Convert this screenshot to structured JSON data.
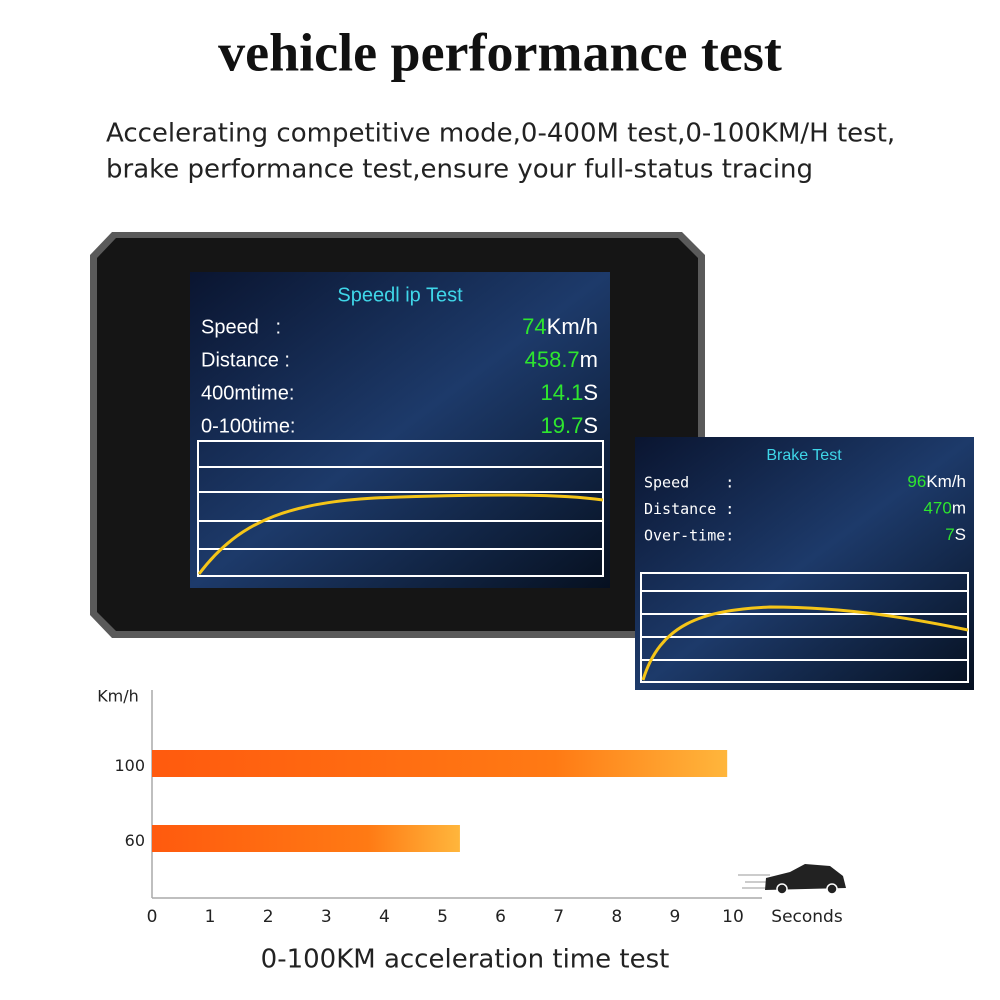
{
  "header": {
    "title": "vehicle performance test",
    "subtitle": [
      "Accelerating competitive mode,0-400M test,0-100KM/H test,",
      "brake performance test,ensure your full-status tracing"
    ]
  },
  "speed_screen": {
    "title": "Speedl ip Test",
    "rows": [
      {
        "label": "Speed   :",
        "value": 74,
        "unit": "Km/h"
      },
      {
        "label": "Distance :",
        "value": 458.7,
        "unit": "m"
      },
      {
        "label": "400mtime:",
        "value": 14.1,
        "unit": "S"
      },
      {
        "label": "0-100time:",
        "value": 19.7,
        "unit": "S"
      }
    ]
  },
  "brake_screen": {
    "title": "Brake Test",
    "rows": [
      {
        "label": "Speed    :",
        "value": 96,
        "unit": "Km/h"
      },
      {
        "label": "Distance :",
        "value": 470,
        "unit": "m"
      },
      {
        "label": "Over-time:",
        "value": 7,
        "unit": "S"
      }
    ]
  },
  "chart_data": {
    "type": "bar",
    "orientation": "horizontal",
    "title": "0-100KM acceleration time test",
    "x_label": "Seconds",
    "y_label": "Km/h",
    "categories": [
      "100",
      "60"
    ],
    "values": [
      9.9,
      5.3
    ],
    "color": "#ff5a0e",
    "xlim": [
      0,
      10.5
    ],
    "xticks": [
      0,
      1,
      2,
      3,
      4,
      5,
      6,
      7,
      8,
      9,
      10
    ]
  }
}
